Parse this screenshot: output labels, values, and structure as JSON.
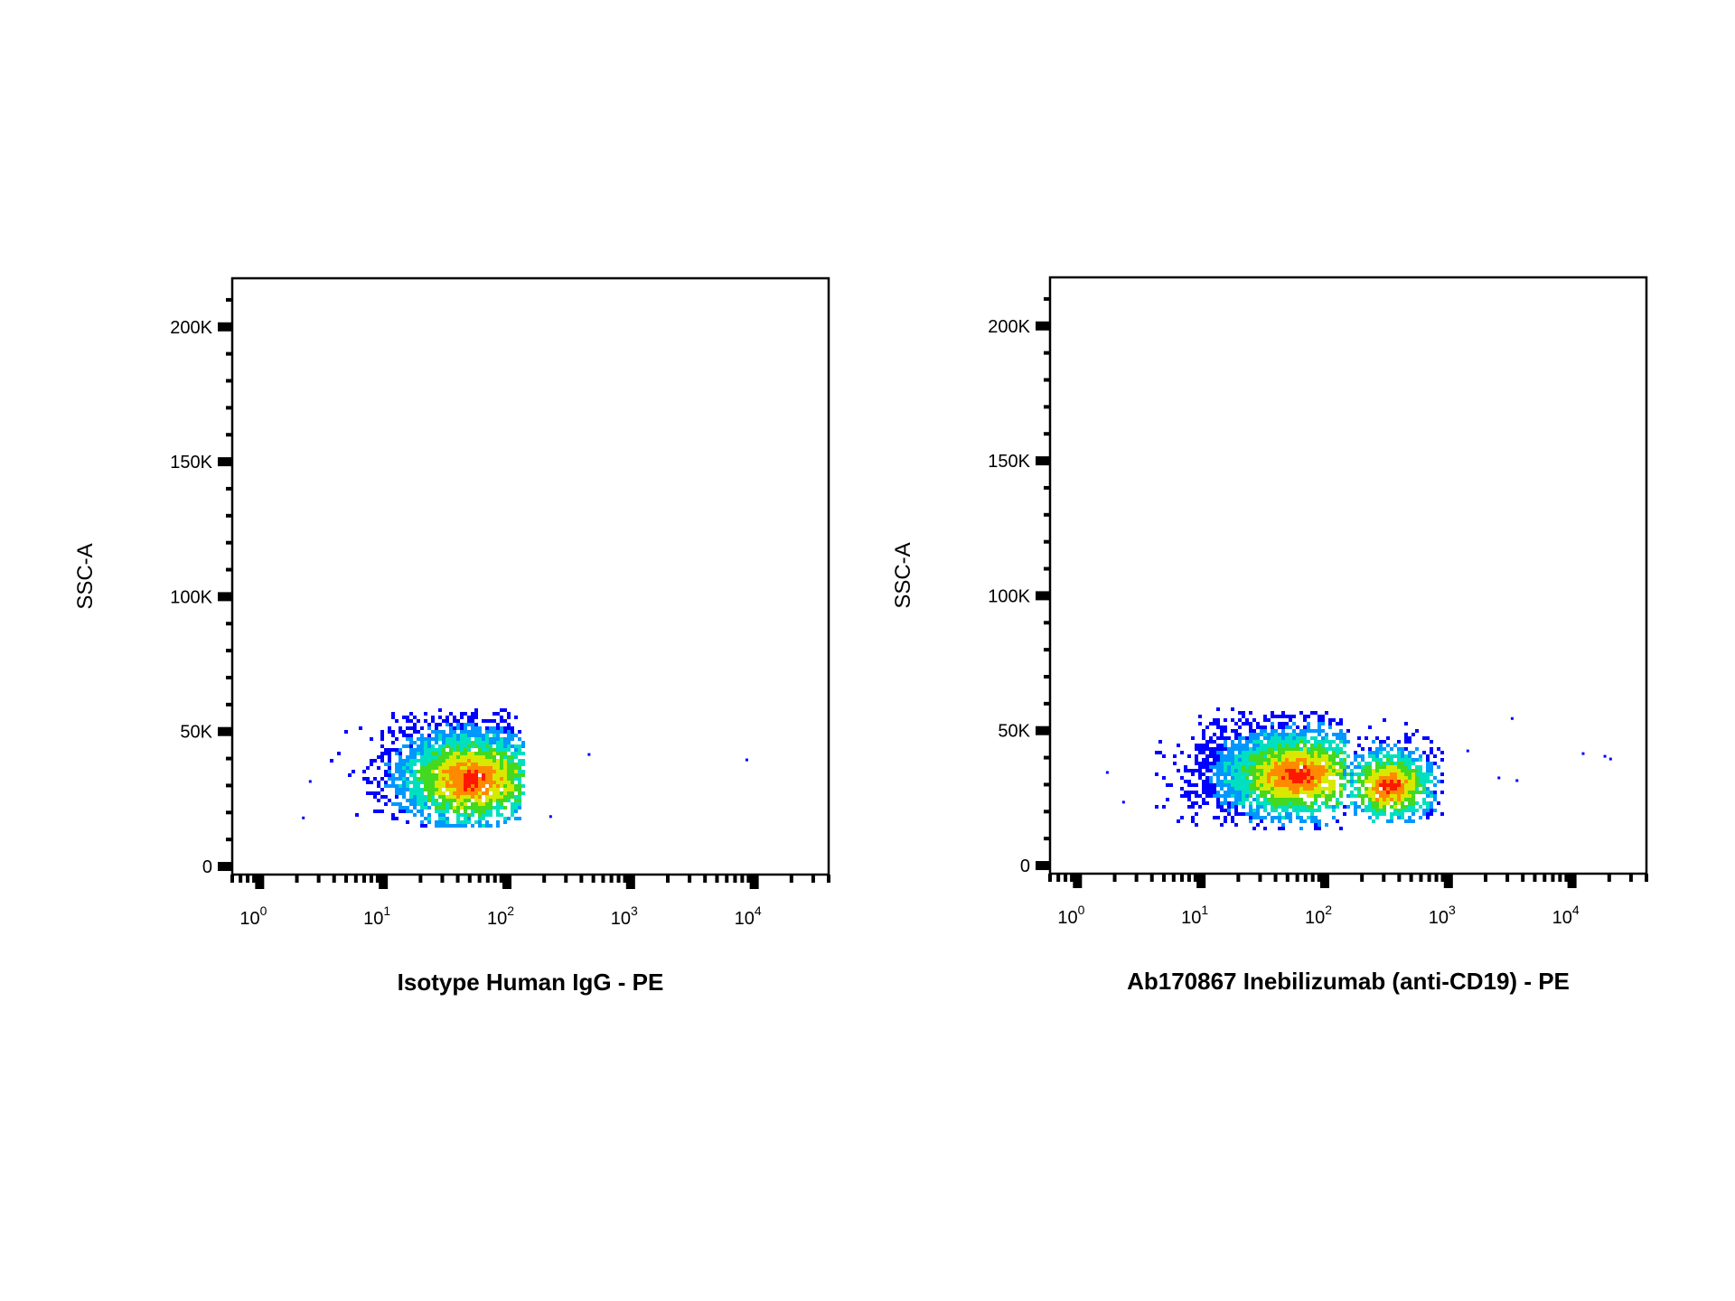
{
  "chart_data": [
    {
      "type": "scatter",
      "subtype": "flow-cytometry-density-dot-plot",
      "xlabel": "Isotype Human IgG - PE",
      "ylabel": "SSC-A",
      "x_scale": "log",
      "xlim": [
        0.6,
        40000
      ],
      "ylim": [
        -3000,
        218000
      ],
      "x_ticks": [
        {
          "base": "10",
          "exp": "0",
          "value": 1
        },
        {
          "base": "10",
          "exp": "1",
          "value": 10
        },
        {
          "base": "10",
          "exp": "2",
          "value": 100
        },
        {
          "base": "10",
          "exp": "3",
          "value": 1000
        },
        {
          "base": "10",
          "exp": "4",
          "value": 10000
        }
      ],
      "y_ticks": [
        {
          "label": "0",
          "value": 0
        },
        {
          "label": "50K",
          "value": 50000
        },
        {
          "label": "100K",
          "value": 100000
        },
        {
          "label": "150K",
          "value": 150000
        },
        {
          "label": "200K",
          "value": 200000
        }
      ],
      "populations": [
        {
          "x_center": 45,
          "x_log_sd": 0.32,
          "x_min": 3,
          "x_max": 130,
          "y_center": 36000,
          "y_sd": 9500,
          "y_min": 15000,
          "y_max": 59000,
          "events": 2600,
          "peak_x": 50,
          "peak_y": 33000
        }
      ],
      "outliers": [
        [
          450,
          42000
        ],
        [
          8500,
          40000
        ],
        [
          220,
          19000
        ],
        [
          2.5,
          32000
        ],
        [
          2.2,
          18500
        ]
      ],
      "density_colors": [
        "#0000ff",
        "#0097ff",
        "#00e0c0",
        "#43d920",
        "#d8e800",
        "#ff8a00",
        "#ff1800"
      ],
      "grid": false
    },
    {
      "type": "scatter",
      "subtype": "flow-cytometry-density-dot-plot",
      "xlabel": "Ab170867 Inebilizumab (anti-CD19) - PE",
      "ylabel": "SSC-A",
      "x_scale": "log",
      "xlim": [
        0.6,
        40000
      ],
      "ylim": [
        -3000,
        218000
      ],
      "x_ticks": [
        {
          "base": "10",
          "exp": "0",
          "value": 1
        },
        {
          "base": "10",
          "exp": "1",
          "value": 10
        },
        {
          "base": "10",
          "exp": "2",
          "value": 100
        },
        {
          "base": "10",
          "exp": "3",
          "value": 1000
        },
        {
          "base": "10",
          "exp": "4",
          "value": 10000
        }
      ],
      "y_ticks": [
        {
          "label": "0",
          "value": 0
        },
        {
          "label": "50K",
          "value": 50000
        },
        {
          "label": "100K",
          "value": 100000
        },
        {
          "label": "150K",
          "value": 150000
        },
        {
          "label": "200K",
          "value": 200000
        }
      ],
      "populations": [
        {
          "x_center": 40,
          "x_log_sd": 0.33,
          "x_min": 4,
          "x_max": 150,
          "y_center": 36000,
          "y_sd": 9000,
          "y_min": 14000,
          "y_max": 59000,
          "events": 2700,
          "peak_x": 60,
          "peak_y": 34000
        },
        {
          "x_center": 350,
          "x_log_sd": 0.2,
          "x_min": 140,
          "x_max": 900,
          "y_center": 31000,
          "y_sd": 7500,
          "y_min": 17000,
          "y_max": 58000,
          "events": 900,
          "peak_x": 320,
          "peak_y": 30000
        }
      ],
      "outliers": [
        [
          1.7,
          35000
        ],
        [
          2.3,
          24000
        ],
        [
          3200,
          55000
        ],
        [
          2500,
          33000
        ],
        [
          3500,
          32000
        ],
        [
          12000,
          42000
        ],
        [
          18000,
          41000
        ],
        [
          20000,
          40000
        ],
        [
          1400,
          43000
        ]
      ],
      "density_colors": [
        "#0000ff",
        "#0097ff",
        "#00e0c0",
        "#43d920",
        "#d8e800",
        "#ff8a00",
        "#ff1800"
      ],
      "grid": false
    }
  ]
}
